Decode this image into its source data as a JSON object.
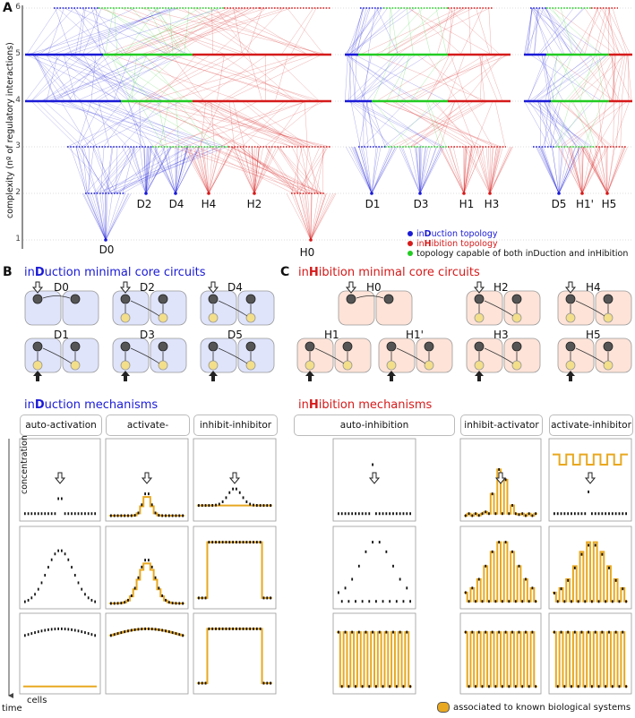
{
  "panel_a": {
    "letter": "A",
    "y_axis_label": "complexity (nº of regulatory interactions)",
    "ticks": [
      "6",
      "5",
      "4",
      "3",
      "2",
      "1"
    ],
    "core_labels": [
      "D0",
      "D2",
      "D4",
      "H4",
      "H2",
      "H0",
      "D1",
      "D3",
      "H1",
      "H3",
      "D5",
      "H1'",
      "H5"
    ],
    "legend": [
      {
        "prefix": "in",
        "bold": "D",
        "suffix": "uction topology",
        "color": "#1a1ad6"
      },
      {
        "prefix": "in",
        "bold": "H",
        "suffix": "ibition topology",
        "color": "#d61a1a"
      },
      {
        "prefix": "",
        "bold": "",
        "suffix": "topology capable of both inDuction and inHibition",
        "color": "#22cc22"
      }
    ]
  },
  "panel_b": {
    "letter": "B",
    "title_prefix": "in",
    "title_bold": "D",
    "title_suffix": "uction minimal core circuits",
    "circuits": [
      "D0",
      "D2",
      "D4",
      "D1",
      "D3",
      "D5"
    ]
  },
  "panel_c": {
    "letter": "C",
    "title_prefix": "in",
    "title_bold": "H",
    "title_suffix": "ibition minimal core circuits",
    "circuits": [
      "H0",
      "H2",
      "H4",
      "H1",
      "H1'",
      "H3",
      "H5"
    ]
  },
  "induction_mech": {
    "title_prefix": "in",
    "title_bold": "D",
    "title_suffix": "uction mechanisms",
    "headers": [
      "auto-activation",
      "activate-activator",
      "inhibit-inhibitor"
    ]
  },
  "inhibition_mech": {
    "title_prefix": "in",
    "title_bold": "H",
    "title_suffix": "ibition mechanisms",
    "headers": [
      "auto-inhibition",
      "inhibit-activator",
      "activate-inhibitor"
    ]
  },
  "axes": {
    "concentration": "concentration",
    "cells": "cells",
    "time": "time"
  },
  "footer_note": "associated to known biological systems",
  "colors": {
    "induction": "#1a1ad6",
    "inhibition": "#d61a1a",
    "both": "#22cc22",
    "activator": "#e8a820",
    "inhibitor": "#111111"
  }
}
